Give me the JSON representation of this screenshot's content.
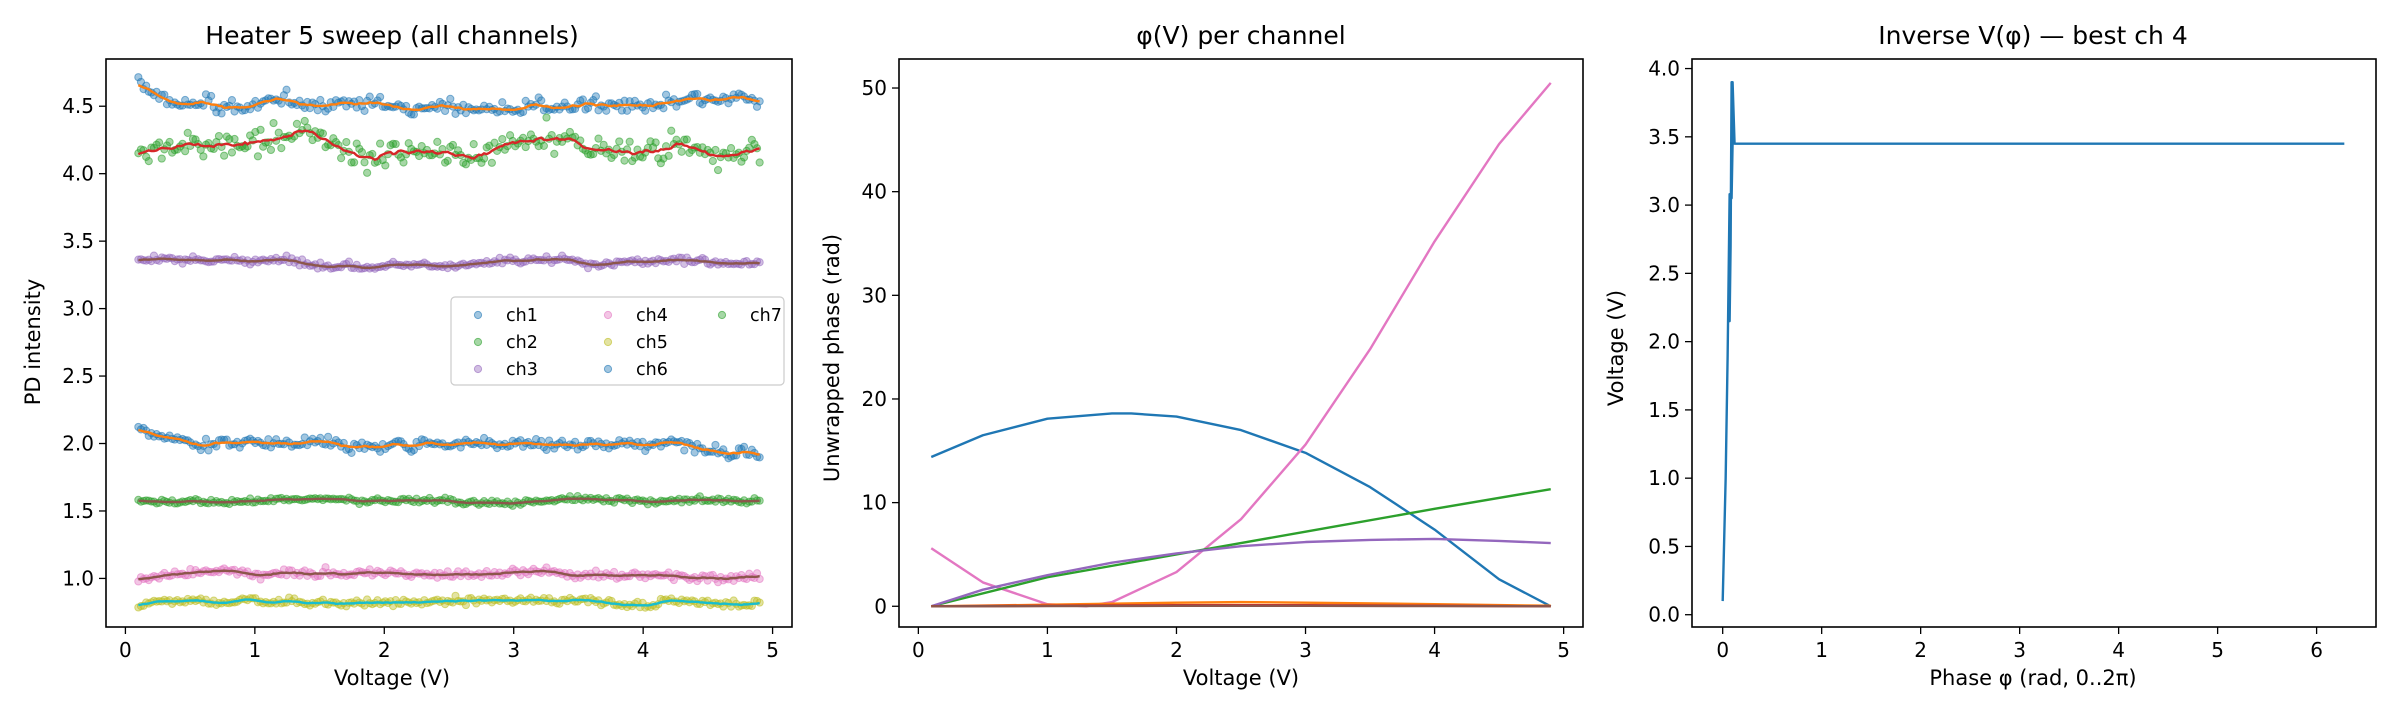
{
  "colors": {
    "blue": "#1f77b4",
    "orange": "#ff7f0e",
    "green": "#2ca02c",
    "red": "#d62728",
    "purple": "#9467bd",
    "brown": "#8c564b",
    "pink": "#e377c2",
    "olive": "#bcbd22",
    "cyan": "#17becf"
  },
  "chart_data": [
    {
      "type": "scatter",
      "title": "Heater 5 sweep (all channels)",
      "xlabel": "Voltage (V)",
      "ylabel": "PD intensity",
      "xlim": [
        -0.15,
        5.15
      ],
      "ylim": [
        0.64,
        4.85
      ],
      "x_ticks": [
        "0",
        "1",
        "2",
        "3",
        "4",
        "5"
      ],
      "y_ticks": [
        "1.0",
        "1.5",
        "2.0",
        "2.5",
        "3.0",
        "3.5",
        "4.0",
        "4.5"
      ],
      "grid": false,
      "legend_position": "center-right",
      "x_range": [
        0.1,
        4.9
      ],
      "series": [
        {
          "name": "ch1",
          "color": "blue",
          "level": 4.5,
          "noise": 0.05,
          "start_bump": 0.18,
          "smooth_color": "orange"
        },
        {
          "name": "ch2",
          "color": "green",
          "level": 4.18,
          "noise": 0.09,
          "start_bump": -0.05,
          "smooth_color": "red"
        },
        {
          "name": "ch3",
          "color": "purple",
          "level": 3.35,
          "noise": 0.025,
          "start_bump": 0.0,
          "smooth_color": "brown"
        },
        {
          "name": "ch4",
          "color": "pink",
          "level": 1.04,
          "noise": 0.03,
          "start_bump": -0.05,
          "smooth_color": "brown"
        },
        {
          "name": "ch5",
          "color": "olive",
          "level": 0.83,
          "noise": 0.025,
          "start_bump": -0.03,
          "smooth_color": "cyan"
        },
        {
          "name": "ch6",
          "color": "blue",
          "level": 2.01,
          "noise": 0.04,
          "start_bump": 0.12,
          "smooth_color": "orange"
        },
        {
          "name": "ch7",
          "color": "green",
          "level": 1.58,
          "noise": 0.02,
          "start_bump": 0.0,
          "smooth_color": "brown"
        }
      ]
    },
    {
      "type": "line",
      "title": "φ(V) per channel",
      "xlabel": "Voltage (V)",
      "ylabel": "Unwrapped phase (rad)",
      "xlim": [
        -0.15,
        5.15
      ],
      "ylim": [
        -2.0,
        52.8
      ],
      "x_ticks": [
        "0",
        "1",
        "2",
        "3",
        "4",
        "5"
      ],
      "y_ticks": [
        "0",
        "10",
        "20",
        "30",
        "40",
        "50"
      ],
      "grid": false,
      "series": [
        {
          "color": "blue",
          "x": [
            0.1,
            0.5,
            1.0,
            1.5,
            1.65,
            2.0,
            2.5,
            3.0,
            3.5,
            4.0,
            4.5,
            4.9
          ],
          "y": [
            14.4,
            16.5,
            18.1,
            18.6,
            18.6,
            18.3,
            17.0,
            14.8,
            11.5,
            7.4,
            2.6,
            0.0
          ]
        },
        {
          "color": "pink",
          "x": [
            0.1,
            0.5,
            1.0,
            1.3,
            1.5,
            2.0,
            2.5,
            3.0,
            3.5,
            4.0,
            4.5,
            4.9
          ],
          "y": [
            5.6,
            2.3,
            0.2,
            0.0,
            0.4,
            3.3,
            8.4,
            15.6,
            24.8,
            35.2,
            44.6,
            50.5
          ]
        },
        {
          "color": "green",
          "x": [
            0.1,
            1.0,
            2.0,
            3.0,
            4.0,
            4.9
          ],
          "y": [
            0.0,
            2.8,
            5.0,
            7.2,
            9.4,
            11.3
          ]
        },
        {
          "color": "purple",
          "x": [
            0.1,
            0.5,
            1.0,
            1.5,
            2.0,
            2.5,
            3.0,
            3.5,
            4.0,
            4.5,
            4.9
          ],
          "y": [
            0.0,
            1.6,
            3.0,
            4.2,
            5.1,
            5.8,
            6.2,
            6.4,
            6.5,
            6.3,
            6.1
          ]
        },
        {
          "color": "orange",
          "x": [
            0.1,
            1.0,
            2.0,
            2.5,
            3.0,
            4.0,
            4.9
          ],
          "y": [
            0.0,
            0.15,
            0.35,
            0.4,
            0.35,
            0.2,
            0.05
          ]
        },
        {
          "color": "red",
          "x": [
            0.1,
            1.0,
            2.0,
            3.0,
            4.0,
            4.9
          ],
          "y": [
            0.0,
            0.05,
            0.1,
            0.1,
            0.05,
            0.0
          ]
        },
        {
          "color": "brown",
          "x": [
            0.1,
            1.0,
            2.0,
            3.0,
            4.0,
            4.9
          ],
          "y": [
            0.0,
            0.02,
            0.04,
            0.04,
            0.02,
            0.0
          ]
        }
      ]
    },
    {
      "type": "line",
      "title": "Inverse V(φ) — best ch 4",
      "xlabel": "Phase φ (rad, 0..2π)",
      "ylabel": "Voltage (V)",
      "xlim": [
        -0.31,
        6.6
      ],
      "ylim": [
        -0.09,
        4.07
      ],
      "x_ticks": [
        "0",
        "1",
        "2",
        "3",
        "4",
        "5",
        "6"
      ],
      "y_ticks": [
        "0.0",
        "0.5",
        "1.0",
        "1.5",
        "2.0",
        "2.5",
        "3.0",
        "3.5",
        "4.0"
      ],
      "grid": false,
      "series": [
        {
          "color": "blue",
          "x": [
            0.0,
            0.03,
            0.05,
            0.07,
            0.07,
            0.07,
            0.08,
            0.09,
            0.09,
            0.09,
            0.1,
            0.1,
            0.12,
            1.0,
            3.0,
            6.28
          ],
          "y": [
            0.1,
            1.0,
            1.9,
            3.08,
            2.9,
            2.15,
            2.7,
            3.9,
            3.5,
            3.05,
            3.45,
            3.9,
            3.45,
            3.45,
            3.45,
            3.45
          ]
        }
      ]
    }
  ]
}
